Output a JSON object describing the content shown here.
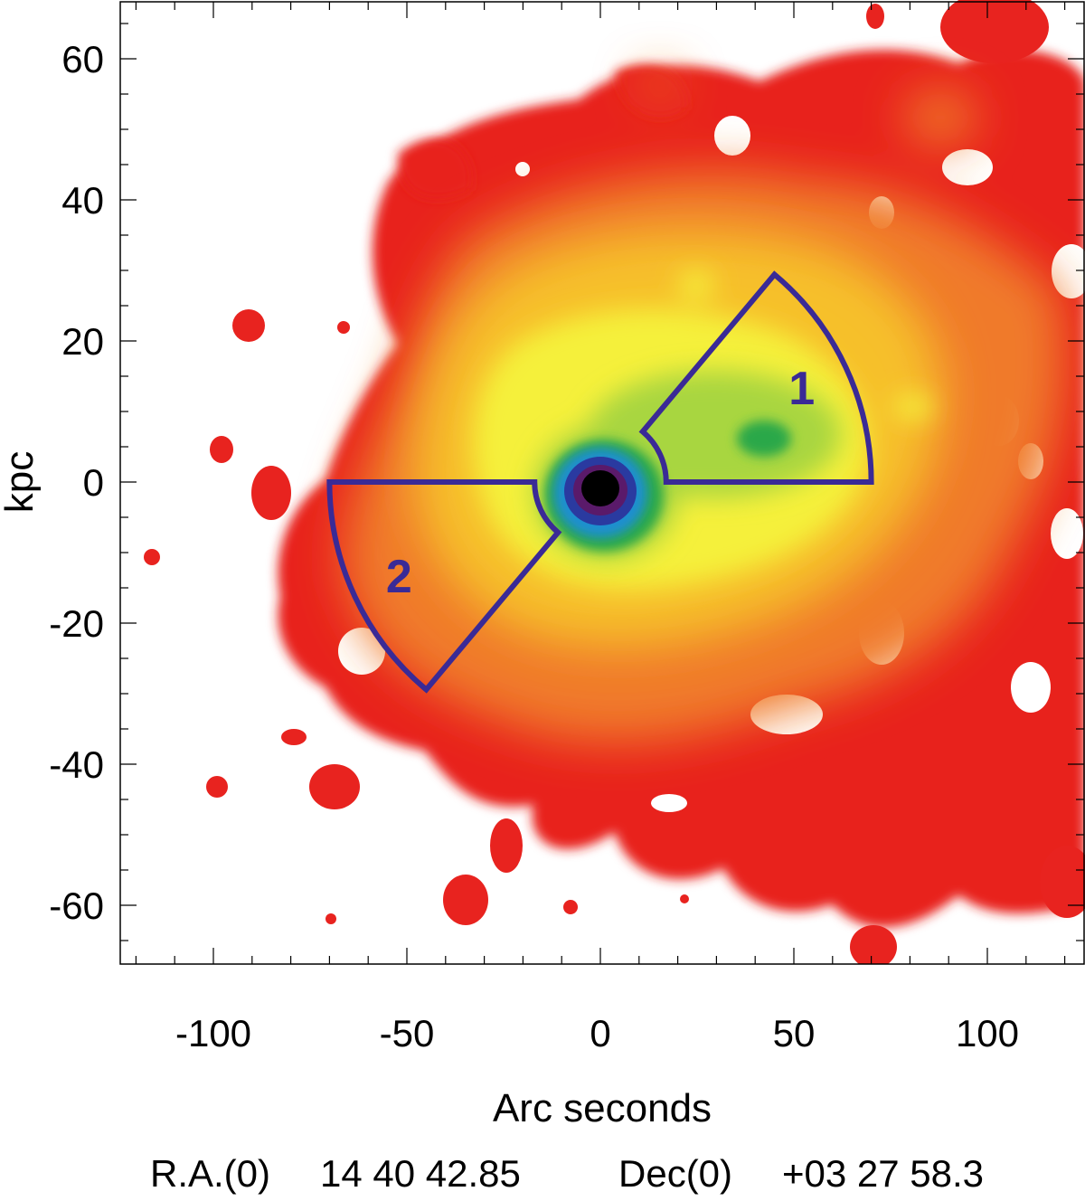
{
  "chart_data": {
    "type": "heatmap",
    "title": "",
    "xlabel": "Arc seconds",
    "ylabel": "kpc",
    "xlim": [
      -125,
      125
    ],
    "ylim": [
      -68,
      68
    ],
    "x_ticks": [
      -100,
      -50,
      0,
      50,
      100
    ],
    "y_ticks": [
      -60,
      -40,
      -20,
      0,
      20,
      40,
      60
    ],
    "x_tick_labels": [
      "-100",
      "-50",
      "0",
      "50",
      "100"
    ],
    "y_tick_labels": [
      "-60",
      "-40",
      "-20",
      "0",
      "20",
      "40",
      "60"
    ],
    "grid": false,
    "colormap": [
      "#ffffff",
      "#e8231f",
      "#f07a2a",
      "#f6c02c",
      "#f5f03a",
      "#8fcc45",
      "#2aa84a",
      "#1c8fd0",
      "#2a3aa0",
      "#5a1a6a",
      "#000000"
    ],
    "emission_center": [
      0,
      0
    ],
    "regions": [
      {
        "label": "1",
        "center": [
          0,
          0
        ],
        "inner_radius": 17,
        "outer_radius": 70,
        "angle_start_deg": 0,
        "angle_end_deg": 50
      },
      {
        "label": "2",
        "center": [
          0,
          0
        ],
        "inner_radius": 17,
        "outer_radius": 70,
        "angle_start_deg": 180,
        "angle_end_deg": 230
      }
    ],
    "region_color": "#3a2a96"
  },
  "coordinates": {
    "ra_label": "R.A.(0)",
    "ra_value": "14 40 42.85",
    "dec_label": "Dec(0)",
    "dec_value": "+03 27 58.3"
  }
}
